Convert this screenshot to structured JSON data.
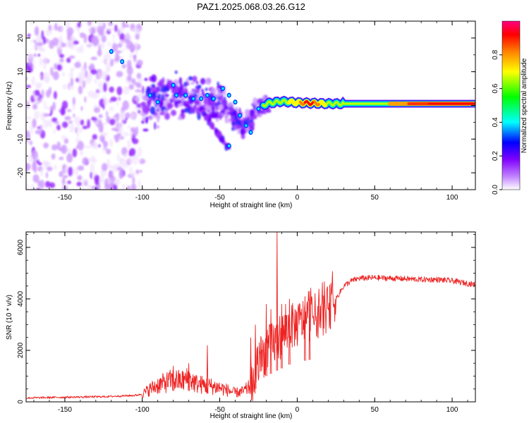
{
  "title": "PAZ1.2025.068.03.26.G12",
  "chart_data": [
    {
      "type": "heatmap",
      "xlabel": "Height of straight line (km)",
      "ylabel": "Frequency (Hz)",
      "xlim": [
        -175,
        115
      ],
      "ylim": [
        -25,
        25
      ],
      "x_ticks": [
        -150,
        -100,
        -50,
        0,
        50,
        100
      ],
      "y_ticks": [
        -20,
        -10,
        0,
        10,
        20
      ],
      "colorbar": {
        "label": "Normalized spectral amplitude",
        "range": [
          0,
          1
        ],
        "ticks": [
          "0.0",
          "0.2",
          "0.4",
          "0.6",
          "0.8"
        ],
        "colors": [
          "#ffffff",
          "#8000ff",
          "#0000ff",
          "#00ffff",
          "#00ff00",
          "#ffff00",
          "#ff8000",
          "#ff0000",
          "#ff0080"
        ]
      },
      "ridge": [
        {
          "x": -100,
          "y": 0
        },
        {
          "x": -90,
          "y": 1.5
        },
        {
          "x": -80,
          "y": 3.5
        },
        {
          "x": -70,
          "y": 2.5
        },
        {
          "x": -60,
          "y": 0.5
        },
        {
          "x": -50,
          "y": 1.0
        },
        {
          "x": -45,
          "y": -1.0
        },
        {
          "x": -40,
          "y": -3.5
        },
        {
          "x": -35,
          "y": -6.0
        },
        {
          "x": -30,
          "y": -4.0
        },
        {
          "x": -25,
          "y": -1.0
        },
        {
          "x": -20,
          "y": 0.5
        },
        {
          "x": -10,
          "y": 1.2
        },
        {
          "x": 0,
          "y": 0.8
        },
        {
          "x": 20,
          "y": 0.5
        },
        {
          "x": 50,
          "y": 0.5
        },
        {
          "x": 100,
          "y": 0.5
        },
        {
          "x": 115,
          "y": 0.5
        }
      ],
      "notes": "Incoherent low-amplitude speckle for heights below about -100 km; converging band of peaks between -100 and -20 km with a branch descending to about -12 Hz near -45 km; coherent high-amplitude line near 0 to 1 Hz above about -20 km."
    },
    {
      "type": "line",
      "xlabel": "Height of straight line (km)",
      "ylabel": "SNR (10 * v/v)",
      "xlim": [
        -175,
        115
      ],
      "ylim": [
        0,
        6600
      ],
      "x_ticks": [
        -150,
        -100,
        -50,
        0,
        50,
        100
      ],
      "y_ticks": [
        0,
        2000,
        4000,
        6000
      ],
      "color": "#ee2222",
      "series": [
        {
          "x": [
            -175,
            -150,
            -125,
            -105,
            -100,
            -95,
            -90,
            -85,
            -80,
            -75,
            -70,
            -65,
            -60,
            -55,
            -50,
            -45,
            -40,
            -35,
            -30,
            -27,
            -25,
            -20,
            -15,
            -10,
            -5,
            0,
            5,
            10,
            15,
            20,
            25,
            30,
            35,
            40,
            50,
            60,
            70,
            80,
            90,
            100,
            110,
            115
          ],
          "y": [
            150,
            180,
            200,
            250,
            300,
            500,
            650,
            750,
            850,
            800,
            900,
            700,
            650,
            600,
            550,
            450,
            350,
            400,
            600,
            1000,
            1500,
            2000,
            2300,
            2600,
            2900,
            3000,
            3200,
            3300,
            3400,
            3600,
            4000,
            4500,
            4700,
            4800,
            4820,
            4800,
            4780,
            4750,
            4750,
            4700,
            4600,
            4550
          ]
        }
      ],
      "spikes": [
        {
          "x": -30,
          "y": 2500
        },
        {
          "x": -27,
          "y": 3000
        },
        {
          "x": -20,
          "y": 3800
        },
        {
          "x": -17,
          "y": 3600
        },
        {
          "x": -13,
          "y": 6600
        },
        {
          "x": -10,
          "y": 3800
        },
        {
          "x": -5,
          "y": 4000
        },
        {
          "x": 5,
          "y": 4100
        },
        {
          "x": 8,
          "y": 4300
        },
        {
          "x": -58,
          "y": 2200
        },
        {
          "x": -80,
          "y": 1400
        },
        {
          "x": -70,
          "y": 1500
        }
      ]
    }
  ]
}
